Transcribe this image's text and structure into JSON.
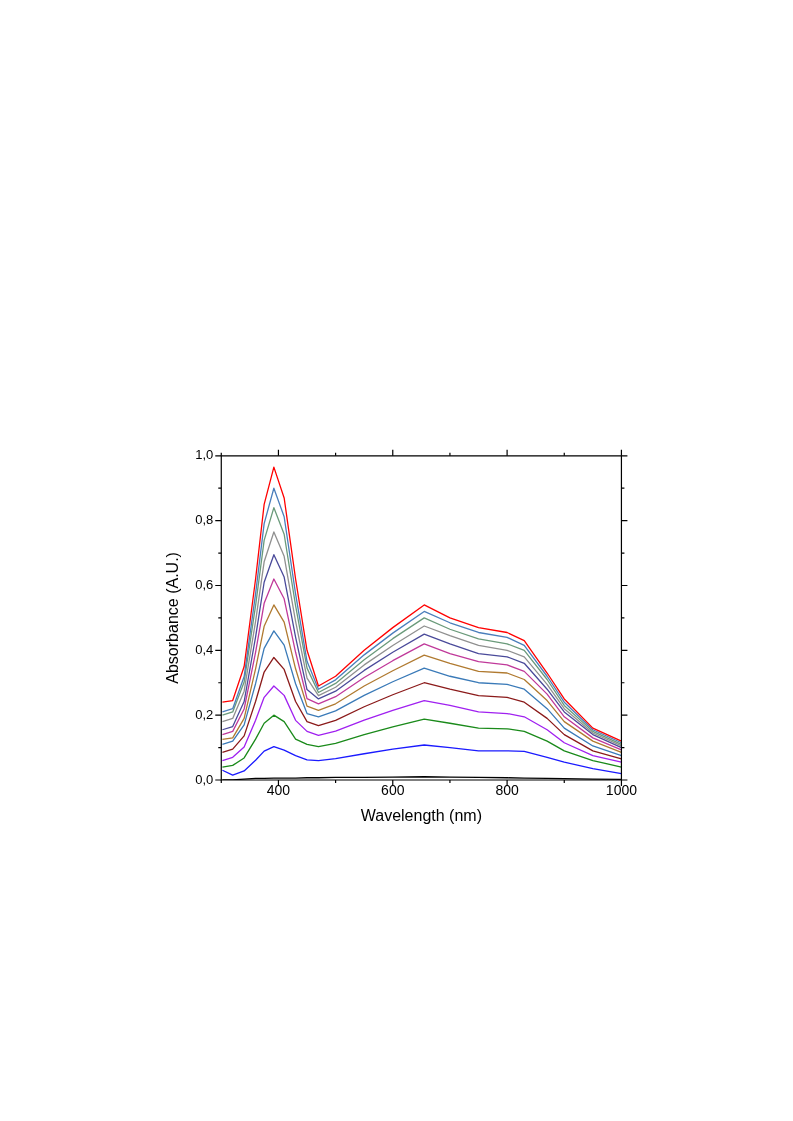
{
  "chart_data": {
    "type": "line",
    "xlabel": "Wavelength (nm)",
    "ylabel": "Absorbance (A.U.)",
    "xlim": [
      300,
      1000
    ],
    "ylim": [
      0,
      1
    ],
    "xticks": [
      {
        "value": 300,
        "label": null
      },
      400,
      {
        "value": 500,
        "label": null
      },
      600,
      {
        "value": 700,
        "label": null
      },
      800,
      {
        "value": 900,
        "label": null
      },
      1000
    ],
    "yticks": [
      {
        "value": 0,
        "label": "0,0"
      },
      {
        "value": 0.1,
        "label": null
      },
      {
        "value": 0.2,
        "label": "0,2"
      },
      {
        "value": 0.3,
        "label": null
      },
      {
        "value": 0.4,
        "label": "0,4"
      },
      {
        "value": 0.5,
        "label": null
      },
      {
        "value": 0.6,
        "label": "0,6"
      },
      {
        "value": 0.7,
        "label": null
      },
      {
        "value": 0.8,
        "label": "0,8"
      },
      {
        "value": 0.9,
        "label": null
      },
      {
        "value": 1,
        "label": "1,0"
      }
    ],
    "grid": false,
    "legend": false,
    "marker": "none",
    "line_style": "solid",
    "x": [
      302,
      320,
      340,
      360,
      375,
      392,
      410,
      430,
      450,
      470,
      500,
      550,
      600,
      655,
      700,
      750,
      800,
      830,
      870,
      900,
      950,
      1000
    ],
    "series": [
      {
        "color": "#ff0000",
        "values": [
          0.24,
          0.245,
          0.35,
          0.62,
          0.85,
          0.965,
          0.87,
          0.62,
          0.4,
          0.29,
          0.32,
          0.4,
          0.47,
          0.54,
          0.5,
          0.47,
          0.455,
          0.43,
          0.33,
          0.25,
          0.16,
          0.12
        ]
      },
      {
        "color": "#4a7ebb",
        "values": [
          0.21,
          0.22,
          0.319,
          0.574,
          0.791,
          0.9,
          0.812,
          0.574,
          0.366,
          0.28,
          0.309,
          0.386,
          0.453,
          0.52,
          0.485,
          0.455,
          0.44,
          0.415,
          0.32,
          0.24,
          0.155,
          0.115
        ]
      },
      {
        "color": "#6a9a7a",
        "values": [
          0.2,
          0.21,
          0.302,
          0.538,
          0.739,
          0.84,
          0.758,
          0.538,
          0.345,
          0.27,
          0.298,
          0.371,
          0.436,
          0.5,
          0.465,
          0.435,
          0.42,
          0.4,
          0.31,
          0.23,
          0.15,
          0.11
        ]
      },
      {
        "color": "#909090",
        "values": [
          0.18,
          0.19,
          0.274,
          0.489,
          0.673,
          0.765,
          0.69,
          0.489,
          0.314,
          0.26,
          0.286,
          0.355,
          0.415,
          0.475,
          0.445,
          0.415,
          0.4,
          0.38,
          0.295,
          0.22,
          0.145,
          0.105
        ]
      },
      {
        "color": "#4a4a9a",
        "values": [
          0.155,
          0.165,
          0.242,
          0.441,
          0.61,
          0.695,
          0.626,
          0.441,
          0.279,
          0.25,
          0.274,
          0.338,
          0.394,
          0.45,
          0.42,
          0.39,
          0.38,
          0.36,
          0.28,
          0.21,
          0.14,
          0.1
        ]
      },
      {
        "color": "#c0399a",
        "values": [
          0.14,
          0.15,
          0.219,
          0.394,
          0.545,
          0.62,
          0.559,
          0.394,
          0.251,
          0.235,
          0.257,
          0.316,
          0.368,
          0.42,
          0.39,
          0.365,
          0.355,
          0.335,
          0.265,
          0.195,
          0.13,
          0.093
        ]
      },
      {
        "color": "#b07a30",
        "values": [
          0.125,
          0.13,
          0.19,
          0.343,
          0.474,
          0.54,
          0.487,
          0.343,
          0.228,
          0.215,
          0.235,
          0.29,
          0.337,
          0.385,
          0.36,
          0.335,
          0.33,
          0.31,
          0.245,
          0.18,
          0.12,
          0.085
        ]
      },
      {
        "color": "#3a7ab8",
        "values": [
          0.11,
          0.12,
          0.17,
          0.297,
          0.406,
          0.46,
          0.416,
          0.297,
          0.205,
          0.195,
          0.213,
          0.261,
          0.303,
          0.345,
          0.32,
          0.3,
          0.295,
          0.28,
          0.22,
          0.16,
          0.105,
          0.075
        ]
      },
      {
        "color": "#8b1a1a",
        "values": [
          0.085,
          0.095,
          0.136,
          0.242,
          0.333,
          0.378,
          0.341,
          0.242,
          0.18,
          0.168,
          0.184,
          0.226,
          0.263,
          0.3,
          0.28,
          0.26,
          0.255,
          0.24,
          0.19,
          0.14,
          0.09,
          0.065
        ]
      },
      {
        "color": "#a020f0",
        "values": [
          0.06,
          0.07,
          0.102,
          0.184,
          0.255,
          0.29,
          0.261,
          0.184,
          0.15,
          0.138,
          0.151,
          0.185,
          0.215,
          0.245,
          0.23,
          0.21,
          0.205,
          0.195,
          0.155,
          0.115,
          0.075,
          0.055
        ]
      },
      {
        "color": "#1a8a1a",
        "values": [
          0.04,
          0.045,
          0.068,
          0.126,
          0.175,
          0.2,
          0.18,
          0.126,
          0.11,
          0.103,
          0.113,
          0.14,
          0.164,
          0.188,
          0.175,
          0.16,
          0.158,
          0.15,
          0.12,
          0.09,
          0.06,
          0.04
        ]
      },
      {
        "color": "#1a1aff",
        "values": [
          0.03,
          0.015,
          0.028,
          0.061,
          0.089,
          0.103,
          0.092,
          0.075,
          0.062,
          0.06,
          0.066,
          0.081,
          0.095,
          0.108,
          0.1,
          0.09,
          0.09,
          0.088,
          0.07,
          0.055,
          0.035,
          0.02
        ]
      },
      {
        "color": "#000000",
        "values": [
          0.0,
          0.0,
          0.003,
          0.005,
          0.005,
          0.006,
          0.006,
          0.006,
          0.007,
          0.007,
          0.008,
          0.008,
          0.009,
          0.01,
          0.009,
          0.008,
          0.007,
          0.006,
          0.005,
          0.004,
          0.003,
          0.002
        ]
      }
    ]
  }
}
